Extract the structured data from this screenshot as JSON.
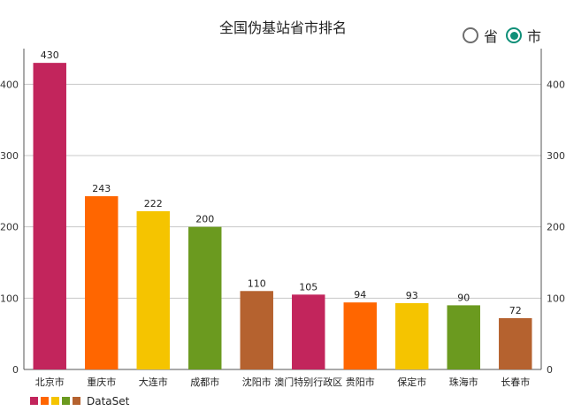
{
  "chart_data": {
    "type": "bar",
    "title": "全国伪基站省市排名",
    "categories": [
      "北京市",
      "重庆市",
      "大连市",
      "成都市",
      "沈阳市",
      "澳门特别行政区",
      "贵阳市",
      "保定市",
      "珠海市",
      "长春市"
    ],
    "values": [
      430,
      243,
      222,
      200,
      110,
      105,
      94,
      93,
      90,
      72
    ],
    "colors": [
      "#c2255c",
      "#ff6600",
      "#f5c400",
      "#6b9a1f",
      "#b5622f",
      "#c2255c",
      "#ff6600",
      "#f5c400",
      "#6b9a1f",
      "#b5622f"
    ],
    "ylim": [
      0,
      450
    ],
    "yticks": [
      0,
      100,
      200,
      300,
      400
    ],
    "grid": true,
    "right_axis": true,
    "legend": {
      "position": "bottom-left",
      "label": "DataSet",
      "swatches": [
        "#c2255c",
        "#ff6600",
        "#f5c400",
        "#6b9a1f",
        "#b5622f"
      ]
    }
  },
  "toggle": {
    "province_label": "省",
    "city_label": "市",
    "selected": "city"
  },
  "colors": {
    "axis": "#555555",
    "grid": "#c8c8c8",
    "accent": "#0f8f78"
  }
}
